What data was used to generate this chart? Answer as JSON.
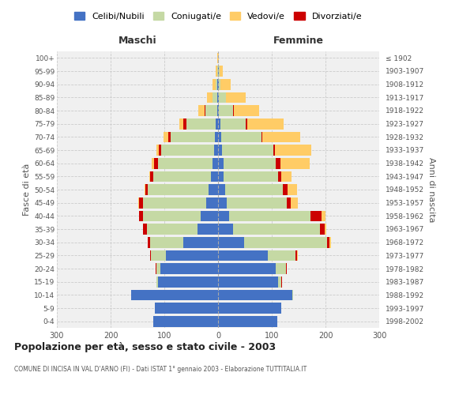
{
  "age_groups": [
    "0-4",
    "5-9",
    "10-14",
    "15-19",
    "20-24",
    "25-29",
    "30-34",
    "35-39",
    "40-44",
    "45-49",
    "50-54",
    "55-59",
    "60-64",
    "65-69",
    "70-74",
    "75-79",
    "80-84",
    "85-89",
    "90-94",
    "95-99",
    "100+"
  ],
  "birth_years": [
    "1998-2002",
    "1993-1997",
    "1988-1992",
    "1983-1987",
    "1978-1982",
    "1973-1977",
    "1968-1972",
    "1963-1967",
    "1958-1962",
    "1953-1957",
    "1948-1952",
    "1943-1947",
    "1938-1942",
    "1933-1937",
    "1928-1932",
    "1923-1927",
    "1918-1922",
    "1913-1917",
    "1908-1912",
    "1903-1907",
    "≤ 1902"
  ],
  "male": {
    "celibe": [
      120,
      118,
      162,
      112,
      107,
      97,
      65,
      38,
      32,
      22,
      18,
      13,
      10,
      8,
      6,
      4,
      2,
      1,
      1,
      0,
      0
    ],
    "coniugato": [
      0,
      0,
      0,
      2,
      8,
      28,
      62,
      95,
      108,
      118,
      113,
      108,
      102,
      98,
      82,
      55,
      22,
      10,
      4,
      2,
      0
    ],
    "vedovo": [
      0,
      0,
      0,
      0,
      0,
      0,
      0,
      0,
      0,
      1,
      1,
      2,
      4,
      4,
      8,
      8,
      12,
      10,
      6,
      3,
      1
    ],
    "divorziato": [
      0,
      0,
      0,
      0,
      1,
      2,
      4,
      7,
      7,
      7,
      5,
      5,
      7,
      5,
      5,
      5,
      1,
      0,
      0,
      0,
      0
    ]
  },
  "female": {
    "nubile": [
      110,
      118,
      138,
      112,
      108,
      92,
      48,
      28,
      20,
      16,
      13,
      10,
      10,
      8,
      6,
      4,
      2,
      2,
      1,
      1,
      0
    ],
    "coniugata": [
      0,
      0,
      2,
      6,
      18,
      52,
      155,
      162,
      152,
      112,
      108,
      102,
      98,
      95,
      75,
      48,
      26,
      12,
      4,
      2,
      0
    ],
    "vedova": [
      0,
      0,
      0,
      0,
      0,
      2,
      2,
      3,
      8,
      12,
      18,
      20,
      55,
      68,
      70,
      68,
      48,
      38,
      18,
      6,
      2
    ],
    "divorziata": [
      0,
      0,
      0,
      1,
      2,
      3,
      5,
      8,
      20,
      8,
      8,
      5,
      8,
      3,
      2,
      2,
      1,
      0,
      0,
      0,
      0
    ]
  },
  "colors": {
    "celibe_nubile": "#4472C4",
    "coniugato_a": "#C5D9A4",
    "vedovo_a": "#FFCC66",
    "divorziato_a": "#CC0000"
  },
  "title": "Popolazione per età, sesso e stato civile - 2003",
  "subtitle": "COMUNE DI INCISA IN VAL D'ARNO (FI) - Dati ISTAT 1° gennaio 2003 - Elaborazione TUTTITALIA.IT",
  "xlabel_left": "Maschi",
  "xlabel_right": "Femmine",
  "ylabel_left": "Fasce di età",
  "ylabel_right": "Anni di nascita",
  "xlim": 300,
  "legend_labels": [
    "Celibi/Nubili",
    "Coniugati/e",
    "Vedovi/e",
    "Divorziati/e"
  ],
  "background_color": "#FFFFFF",
  "grid_color": "#CCCCCC"
}
